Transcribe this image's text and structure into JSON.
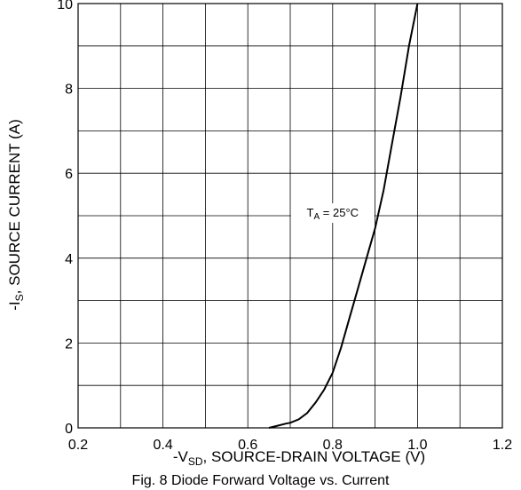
{
  "chart_data": {
    "type": "line",
    "title": "",
    "xlabel": {
      "prefix": "-V",
      "sub": "SD",
      "rest": ", SOURCE-DRAIN VOLTAGE (V)"
    },
    "ylabel": {
      "prefix": "-I",
      "sub": "S",
      "rest": ", SOURCE CURRENT (A)"
    },
    "xlim": [
      0.2,
      1.2
    ],
    "ylim": [
      0,
      10
    ],
    "x_ticks": [
      "0.2",
      "0.4",
      "0.6",
      "0.8",
      "1.0",
      "1.2"
    ],
    "y_ticks": [
      "0",
      "2",
      "4",
      "6",
      "8",
      "10"
    ],
    "grid": true,
    "annotation": {
      "prefix": "T",
      "sub": "A",
      "rest": " = 25°C",
      "x": 0.8,
      "y": 5.0
    },
    "series": [
      {
        "x": [
          0.65,
          0.67,
          0.69,
          0.7,
          0.72,
          0.74,
          0.76,
          0.78,
          0.8,
          0.82,
          0.84,
          0.86,
          0.88,
          0.9,
          0.92,
          0.94,
          0.96,
          0.98,
          1.0
        ],
        "y": [
          0.0,
          0.05,
          0.1,
          0.12,
          0.2,
          0.35,
          0.6,
          0.9,
          1.3,
          1.9,
          2.6,
          3.3,
          4.0,
          4.7,
          5.6,
          6.7,
          7.8,
          9.0,
          10.0
        ]
      }
    ]
  },
  "caption": "Fig. 8 Diode Forward Voltage vs. Current"
}
